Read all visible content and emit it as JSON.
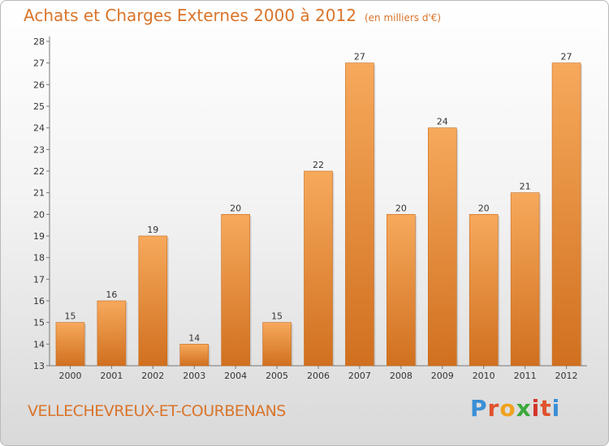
{
  "header": {
    "title": "Achats et Charges Externes 2000 à 2012",
    "unit": "(en milliers d'€)"
  },
  "footer": {
    "commune": "VELLECHEVREUX-ET-COURBENANS",
    "logo_letters": [
      "P",
      "r",
      "o",
      "x",
      "i",
      "t",
      "i"
    ],
    "logo_colors": [
      "#3a8fd6",
      "#e0522b",
      "#f0a21e",
      "#3ba93b",
      "#d4342b",
      "#e0522b",
      "#3a8fd6"
    ]
  },
  "colors": {
    "bar_top": "#f7a95c",
    "bar_bottom": "#d0701f",
    "text": "#333333",
    "accent": "#d9742a"
  },
  "chart_data": {
    "type": "bar",
    "title": "Achats et Charges Externes 2000 à 2012",
    "subtitle": "(en milliers d'€)",
    "categories": [
      "2000",
      "2001",
      "2002",
      "2003",
      "2004",
      "2005",
      "2006",
      "2007",
      "2008",
      "2009",
      "2010",
      "2011",
      "2012"
    ],
    "values": [
      15,
      16,
      19,
      14,
      20,
      15,
      22,
      27,
      20,
      24,
      20,
      21,
      27
    ],
    "ylim": [
      13,
      28
    ],
    "yticks": [
      13,
      14,
      15,
      16,
      17,
      18,
      19,
      20,
      21,
      22,
      23,
      24,
      25,
      26,
      27,
      28
    ],
    "grid": false,
    "legend": "none"
  }
}
